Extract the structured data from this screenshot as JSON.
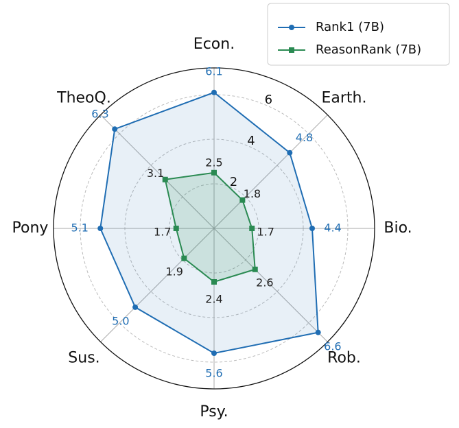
{
  "chart_data": {
    "type": "radar",
    "categories": [
      "Econ.",
      "Earth.",
      "Bio.",
      "Rob.",
      "Psy.",
      "Sus.",
      "Pony",
      "TheoQ."
    ],
    "series": [
      {
        "name": "Rank1 (7B)",
        "color": "#1f6db3",
        "values": [
          6.1,
          4.8,
          4.4,
          6.6,
          5.6,
          5.0,
          5.1,
          6.3
        ],
        "value_labels": [
          "6.1",
          "4.8",
          "4.4",
          "6.6",
          "5.6",
          "5.0",
          "5.1",
          "6.3"
        ]
      },
      {
        "name": "ReasonRank (7B)",
        "color": "#2a8a52",
        "values": [
          2.5,
          1.8,
          1.7,
          2.6,
          2.4,
          1.9,
          1.7,
          3.1
        ],
        "value_labels": [
          "2.5",
          "1.8",
          "1.7",
          "2.6",
          "2.4",
          "1.9",
          "1.7",
          "3.1"
        ]
      }
    ],
    "ylim": [
      0,
      7.2
    ],
    "yticks": [
      2,
      4,
      6
    ],
    "grid": true,
    "legend": "upper right"
  }
}
